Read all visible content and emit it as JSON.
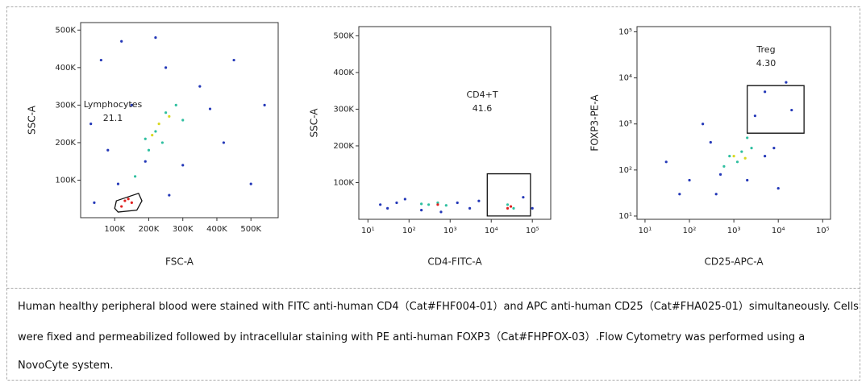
{
  "chart_data": [
    {
      "type": "scatter",
      "xlabel": "FSC-A",
      "ylabel": "SSC-A",
      "xscale": "linear",
      "yscale": "linear",
      "xlim": [
        0,
        580000
      ],
      "ylim": [
        0,
        520000
      ],
      "xticks": [
        {
          "value": 100000,
          "label": "100K"
        },
        {
          "value": 200000,
          "label": "200K"
        },
        {
          "value": 300000,
          "label": "300K"
        },
        {
          "value": 400000,
          "label": "400K"
        },
        {
          "value": 500000,
          "label": "500K"
        }
      ],
      "yticks": [
        {
          "value": 100000,
          "label": "100K"
        },
        {
          "value": 200000,
          "label": "200K"
        },
        {
          "value": 300000,
          "label": "300K"
        },
        {
          "value": 400000,
          "label": "400K"
        },
        {
          "value": 500000,
          "label": "500K"
        }
      ],
      "gate_name": "Lymphocytes",
      "gate_percent": "21.1",
      "gate": {
        "x": [
          105000,
          170000,
          180000,
          165000,
          110000,
          100000
        ],
        "y": [
          45000,
          65000,
          45000,
          20000,
          15000,
          25000
        ]
      },
      "series": [
        {
          "color": "#2438b8",
          "x": [
            60000,
            120000,
            220000,
            350000,
            420000,
            150000,
            80000,
            40000,
            500000,
            300000,
            380000,
            250000,
            190000,
            110000,
            450000,
            30000,
            540000,
            260000
          ],
          "y": [
            420000,
            470000,
            480000,
            350000,
            200000,
            300000,
            180000,
            40000,
            90000,
            140000,
            290000,
            400000,
            150000,
            90000,
            420000,
            250000,
            300000,
            60000
          ]
        },
        {
          "color": "#2fbfa0",
          "x": [
            220000,
            250000,
            280000,
            200000,
            160000,
            300000,
            240000,
            190000
          ],
          "y": [
            230000,
            280000,
            300000,
            180000,
            110000,
            260000,
            200000,
            210000
          ]
        },
        {
          "color": "#d8d820",
          "x": [
            230000,
            260000,
            210000
          ],
          "y": [
            250000,
            270000,
            220000
          ]
        },
        {
          "color": "#e02020",
          "x": [
            130000,
            150000,
            140000,
            120000
          ],
          "y": [
            45000,
            40000,
            50000,
            30000
          ]
        }
      ]
    },
    {
      "type": "scatter",
      "xlabel": "CD4-FITC-A",
      "ylabel": "SSC-A",
      "xscale": "log",
      "yscale": "linear",
      "xlim": [
        6,
        280000
      ],
      "ylim": [
        0,
        525000
      ],
      "xticks": [
        {
          "value": 10,
          "label": "10¹"
        },
        {
          "value": 100,
          "label": "10²"
        },
        {
          "value": 1000,
          "label": "10³"
        },
        {
          "value": 10000,
          "label": "10⁴"
        },
        {
          "value": 100000,
          "label": "10⁵"
        }
      ],
      "yticks": [
        {
          "value": 100000,
          "label": "100K"
        },
        {
          "value": 200000,
          "label": "200K"
        },
        {
          "value": 300000,
          "label": "300K"
        },
        {
          "value": 400000,
          "label": "400K"
        },
        {
          "value": 500000,
          "label": "500K"
        }
      ],
      "gate_name": "CD4+T",
      "gate_percent": "41.6",
      "gate": {
        "x": [
          8000,
          90000,
          90000,
          8000
        ],
        "y": [
          124000,
          124000,
          9000,
          9000
        ]
      },
      "series": [
        {
          "color": "#2438b8",
          "x": [
            30,
            80,
            200,
            1500,
            3000,
            5000,
            50,
            600,
            20,
            100000,
            60000
          ],
          "y": [
            30000,
            55000,
            25000,
            45000,
            30000,
            50000,
            45000,
            20000,
            40000,
            30000,
            60000
          ]
        },
        {
          "color": "#2fbfa0",
          "x": [
            300,
            500,
            800,
            200,
            25000,
            35000
          ],
          "y": [
            40000,
            45000,
            38000,
            42000,
            40000,
            30000
          ]
        },
        {
          "color": "#e02020",
          "x": [
            500,
            30000,
            25000
          ],
          "y": [
            40000,
            35000,
            30000
          ]
        }
      ]
    },
    {
      "type": "scatter",
      "xlabel": "CD25-APC-A",
      "ylabel": "FOXP3-PE-A",
      "xscale": "log",
      "yscale": "log",
      "xlim": [
        6.6,
        150000
      ],
      "ylim": [
        8.5,
        130000
      ],
      "xticks": [
        {
          "value": 10,
          "label": "10¹"
        },
        {
          "value": 100,
          "label": "10²"
        },
        {
          "value": 1000,
          "label": "10³"
        },
        {
          "value": 10000,
          "label": "10⁴"
        },
        {
          "value": 100000,
          "label": "10⁵"
        }
      ],
      "yticks": [
        {
          "value": 10,
          "label": "10¹"
        },
        {
          "value": 100,
          "label": "10²"
        },
        {
          "value": 1000,
          "label": "10³"
        },
        {
          "value": 10000,
          "label": "10⁴"
        },
        {
          "value": 100000,
          "label": "10⁵"
        }
      ],
      "gate_name": "Treg",
      "gate_percent": "4.30",
      "gate": {
        "x": [
          2000,
          38000,
          38000,
          2000
        ],
        "y": [
          6800,
          6800,
          630,
          630
        ]
      },
      "series": [
        {
          "color": "#2438b8",
          "x": [
            30,
            100,
            300,
            500,
            2000,
            5000,
            8000,
            20000,
            5000,
            60,
            200,
            10000,
            3000,
            15000,
            400
          ],
          "y": [
            150,
            60,
            400,
            80,
            60,
            200,
            300,
            2000,
            5000,
            30,
            1000,
            40,
            1500,
            8000,
            30
          ]
        },
        {
          "color": "#2fbfa0",
          "x": [
            800,
            1500,
            1200,
            2500,
            600,
            2000
          ],
          "y": [
            200,
            250,
            150,
            300,
            120,
            500
          ]
        },
        {
          "color": "#d8d820",
          "x": [
            1000,
            1800
          ],
          "y": [
            200,
            180
          ]
        }
      ]
    }
  ],
  "caption": [
    "Human healthy peripheral blood were stained with FITC anti-human CD4（Cat#FHF004-01）and APC anti-human CD25（Cat#FHA025-01）simultaneously. Cells",
    "were fixed and permeabilized followed by intracellular staining with PE anti-human FOXP3（Cat#FHPFOX-03）.Flow Cytometry was performed using a",
    "NovoCyte system."
  ]
}
